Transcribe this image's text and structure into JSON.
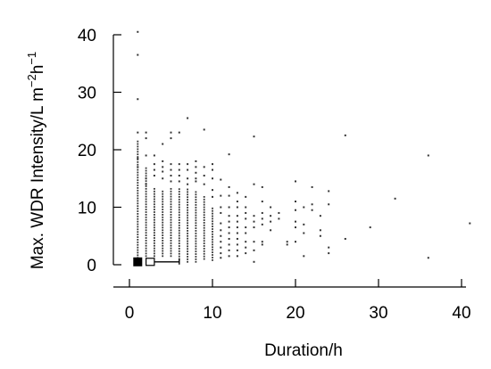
{
  "chart_data": {
    "type": "scatter",
    "title": "",
    "xlabel": "Duration/h",
    "ylabel": {
      "text": "Max. WDR Intensity/L m",
      "sup1": "−2",
      "mid": "h",
      "sup2": "−1"
    },
    "xlim": [
      0,
      40
    ],
    "ylim": [
      0,
      40
    ],
    "xticks": [
      0,
      10,
      20,
      30,
      40
    ],
    "yticks": [
      0,
      10,
      20,
      30,
      40
    ],
    "grid": false,
    "legend": "none",
    "point_color": "#333333",
    "marker": {
      "x": 1,
      "y": 0.5,
      "color": "#000000"
    },
    "range_box": {
      "x_start": 2,
      "x_end": 3,
      "y": 0.5
    },
    "whisker": {
      "x_start": 3,
      "x_end": 6,
      "y": 0.5
    },
    "dense_columns": [
      {
        "x": 1,
        "y_min": 1.2,
        "y_max": 21.5
      },
      {
        "x": 2,
        "y_min": 1.5,
        "y_max": 17
      },
      {
        "x": 3,
        "y_min": 1.5,
        "y_max": 13.5
      },
      {
        "x": 4,
        "y_min": 1.5,
        "y_max": 13
      },
      {
        "x": 5,
        "y_min": 1.5,
        "y_max": 13.5
      },
      {
        "x": 6,
        "y_min": 1,
        "y_max": 13.5
      },
      {
        "x": 7,
        "y_min": 0.5,
        "y_max": 13.5
      },
      {
        "x": 8,
        "y_min": 0.5,
        "y_max": 13
      },
      {
        "x": 9,
        "y_min": 1,
        "y_max": 12
      },
      {
        "x": 10,
        "y_min": 0.8,
        "y_max": 10
      }
    ],
    "points": [
      [
        1,
        40.5
      ],
      [
        1,
        36.5
      ],
      [
        1,
        28.8
      ],
      [
        1,
        23
      ],
      [
        1,
        18.5
      ],
      [
        1,
        17
      ],
      [
        2,
        23
      ],
      [
        2,
        22
      ],
      [
        2,
        19
      ],
      [
        2,
        15
      ],
      [
        2,
        14
      ],
      [
        3,
        19
      ],
      [
        3,
        17.5
      ],
      [
        3,
        16.5
      ],
      [
        3,
        15.5
      ],
      [
        4,
        21
      ],
      [
        4,
        18
      ],
      [
        4,
        17
      ],
      [
        4,
        16.2
      ],
      [
        4,
        15
      ],
      [
        5,
        23
      ],
      [
        5,
        22
      ],
      [
        5,
        17.5
      ],
      [
        5,
        16.5
      ],
      [
        5,
        15.5
      ],
      [
        5,
        14.5
      ],
      [
        6,
        23
      ],
      [
        6,
        17.5
      ],
      [
        6,
        16.5
      ],
      [
        6,
        15.5
      ],
      [
        6,
        14.5
      ],
      [
        7,
        25.5
      ],
      [
        7,
        17.5
      ],
      [
        7,
        16.5
      ],
      [
        7,
        15
      ],
      [
        7,
        14
      ],
      [
        8,
        18
      ],
      [
        8,
        17
      ],
      [
        8,
        16
      ],
      [
        8,
        15
      ],
      [
        8,
        14.5
      ],
      [
        9,
        23.5
      ],
      [
        9,
        17
      ],
      [
        9,
        15.5
      ],
      [
        9,
        14
      ],
      [
        10,
        17.5
      ],
      [
        10,
        16.5
      ],
      [
        10,
        15
      ],
      [
        10,
        13
      ],
      [
        10,
        11.8
      ],
      [
        11,
        14.8
      ],
      [
        11,
        12
      ],
      [
        11,
        10
      ],
      [
        11,
        9
      ],
      [
        11,
        7.2
      ],
      [
        11,
        6
      ],
      [
        11,
        5
      ],
      [
        11,
        4
      ],
      [
        11,
        3
      ],
      [
        11,
        2
      ],
      [
        11,
        1.2
      ],
      [
        12,
        19.2
      ],
      [
        12,
        13.5
      ],
      [
        12,
        12
      ],
      [
        12,
        10
      ],
      [
        12,
        8.5
      ],
      [
        12,
        7.5
      ],
      [
        12,
        6.5
      ],
      [
        12,
        5.5
      ],
      [
        12,
        4.5
      ],
      [
        12,
        3.5
      ],
      [
        12,
        2.5
      ],
      [
        12,
        1.5
      ],
      [
        13,
        12.5
      ],
      [
        13,
        11
      ],
      [
        13,
        10
      ],
      [
        13,
        8.5
      ],
      [
        13,
        7.5
      ],
      [
        13,
        6.5
      ],
      [
        13,
        5.5
      ],
      [
        13,
        4.5
      ],
      [
        13,
        3.5
      ],
      [
        13,
        2.5
      ],
      [
        13,
        1.5
      ],
      [
        14,
        11.8
      ],
      [
        14,
        10
      ],
      [
        14,
        9
      ],
      [
        14,
        8
      ],
      [
        14,
        6.5
      ],
      [
        14,
        5.5
      ],
      [
        14,
        4
      ],
      [
        14,
        3
      ],
      [
        14,
        2
      ],
      [
        15,
        22.3
      ],
      [
        15,
        14
      ],
      [
        15,
        8.5
      ],
      [
        15,
        7.5
      ],
      [
        15,
        6.5
      ],
      [
        15,
        4
      ],
      [
        15,
        2.5
      ],
      [
        15,
        0.5
      ],
      [
        16,
        13.5
      ],
      [
        16,
        11
      ],
      [
        16,
        9
      ],
      [
        16,
        8
      ],
      [
        16,
        7
      ],
      [
        16,
        4
      ],
      [
        16,
        3.5
      ],
      [
        17,
        10
      ],
      [
        17,
        8.5
      ],
      [
        17,
        7.5
      ],
      [
        17,
        6
      ],
      [
        18,
        9
      ],
      [
        18,
        8
      ],
      [
        19,
        4
      ],
      [
        19,
        3.5
      ],
      [
        20,
        14.5
      ],
      [
        20,
        11
      ],
      [
        20,
        9.5
      ],
      [
        20,
        7.5
      ],
      [
        20,
        6.5
      ],
      [
        20,
        4
      ],
      [
        21,
        10
      ],
      [
        21,
        7
      ],
      [
        21,
        5.5
      ],
      [
        21,
        1.5
      ],
      [
        22,
        13.5
      ],
      [
        22,
        10.5
      ],
      [
        22,
        9.5
      ],
      [
        23,
        8.5
      ],
      [
        23,
        6
      ],
      [
        23,
        5
      ],
      [
        24,
        12.8
      ],
      [
        24,
        10.5
      ],
      [
        24,
        3
      ],
      [
        24,
        2
      ],
      [
        26,
        22.5
      ],
      [
        26,
        4.5
      ],
      [
        29,
        6.5
      ],
      [
        32,
        11.5
      ],
      [
        36,
        19
      ],
      [
        36,
        1.2
      ],
      [
        41,
        7.2
      ]
    ]
  }
}
